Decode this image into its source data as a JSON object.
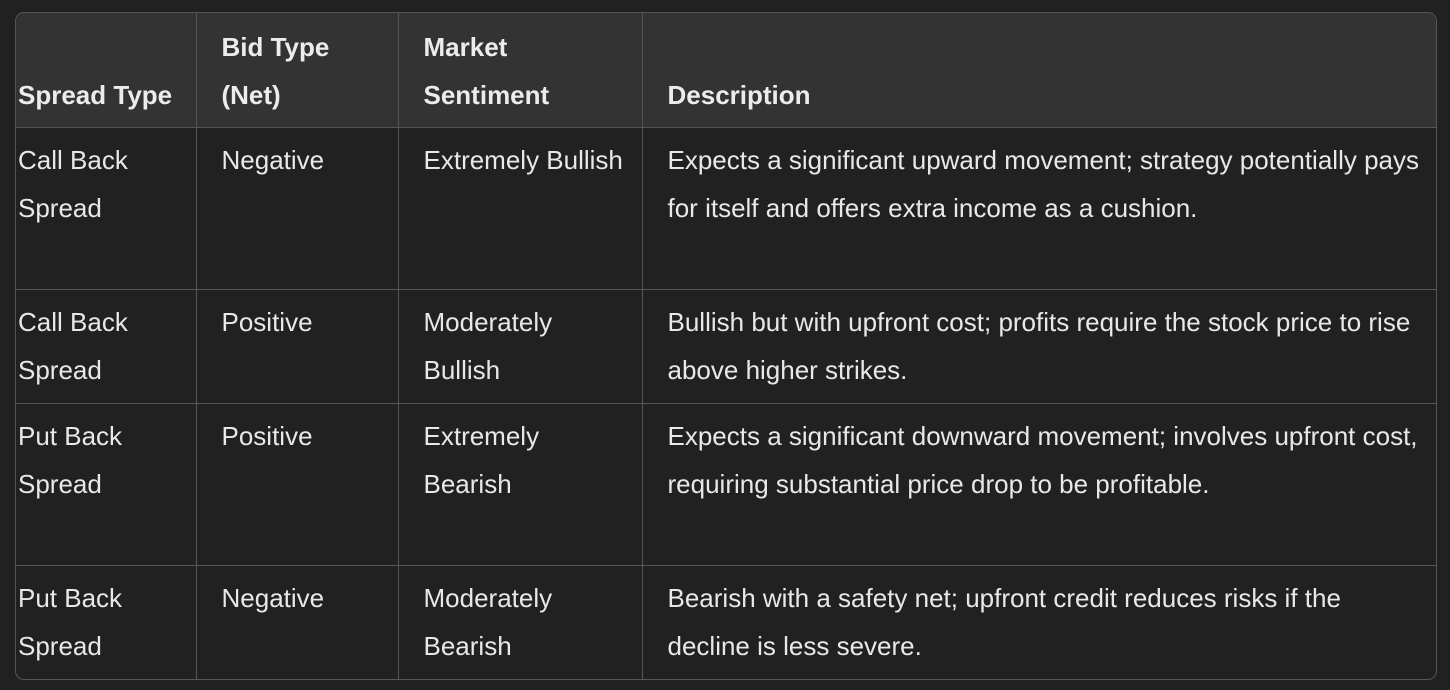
{
  "table": {
    "headers": [
      "Spread Type",
      "Bid Type (Net)",
      "Market Sentiment",
      "Description"
    ],
    "rows": [
      {
        "spread_type": "Call Back Spread",
        "bid_type": "Negative",
        "sentiment": "Extremely Bullish",
        "description": "Expects a significant upward movement; strategy potentially pays for itself and offers extra income as a cushion."
      },
      {
        "spread_type": "Call Back Spread",
        "bid_type": "Positive",
        "sentiment": "Moderately Bullish",
        "description": "Bullish but with upfront cost; profits require the stock price to rise above higher strikes."
      },
      {
        "spread_type": "Put Back Spread",
        "bid_type": "Positive",
        "sentiment": "Extremely Bearish",
        "description": "Expects a significant downward movement; involves upfront cost, requiring substantial price drop to be profitable."
      },
      {
        "spread_type": "Put Back Spread",
        "bid_type": "Negative",
        "sentiment": "Moderately Bearish",
        "description": "Bearish with a safety net; upfront credit reduces risks if the decline is less severe."
      }
    ]
  }
}
